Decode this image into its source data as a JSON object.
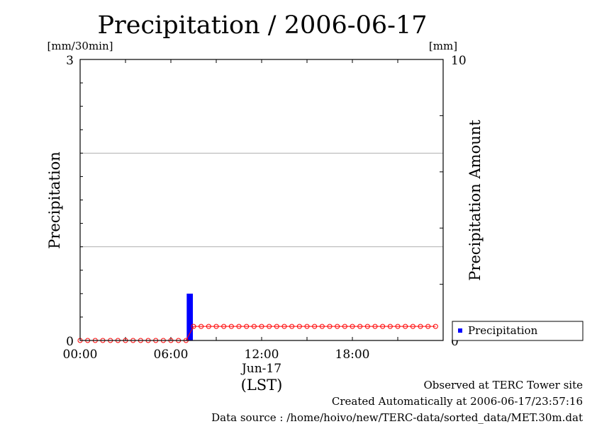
{
  "chart_data": {
    "type": "bar",
    "title": "Precipitation / 2006-06-17",
    "ylabel": "Precipitation",
    "ylabel_right": "Precipitation Amount",
    "yunit_left": "[mm/30min]",
    "yunit_right": "[mm]",
    "ylim": [
      0,
      3
    ],
    "ylim_right": [
      0,
      10
    ],
    "yticks_left": [
      "0",
      "3"
    ],
    "yticks_right": [
      "0",
      "10"
    ],
    "xticks": [
      "00:00",
      "06:00",
      "12:00",
      "18:00"
    ],
    "xlabel_date": "Jun-17",
    "xlabel": "(LST)",
    "x_hours": [
      0,
      24
    ],
    "grid": true,
    "legend": {
      "entries": [
        "Precipitation"
      ],
      "placement": "bottom-right, outside plot"
    },
    "colors": {
      "bar": "#0000ff",
      "cumulative": "#ff0000",
      "grid": "#b0b0b0"
    },
    "series": [
      {
        "name": "Precipitation",
        "kind": "bar",
        "axis": "left",
        "points": [
          {
            "hour": 7.0,
            "value": 0.5
          }
        ]
      },
      {
        "kind": "line-markers",
        "axis": "right",
        "hours": [
          0,
          0.5,
          1,
          1.5,
          2,
          2.5,
          3,
          3.5,
          4,
          4.5,
          5,
          5.5,
          6,
          6.5,
          7,
          7.5,
          8,
          8.5,
          9,
          9.5,
          10,
          10.5,
          11,
          11.5,
          12,
          12.5,
          13,
          13.5,
          14,
          14.5,
          15,
          15.5,
          16,
          16.5,
          17,
          17.5,
          18,
          18.5,
          19,
          19.5,
          20,
          20.5,
          21,
          21.5,
          22,
          22.5,
          23,
          23.5
        ],
        "values": [
          0,
          0,
          0,
          0,
          0,
          0,
          0,
          0,
          0,
          0,
          0,
          0,
          0,
          0,
          0,
          0.5,
          0.5,
          0.5,
          0.5,
          0.5,
          0.5,
          0.5,
          0.5,
          0.5,
          0.5,
          0.5,
          0.5,
          0.5,
          0.5,
          0.5,
          0.5,
          0.5,
          0.5,
          0.5,
          0.5,
          0.5,
          0.5,
          0.5,
          0.5,
          0.5,
          0.5,
          0.5,
          0.5,
          0.5,
          0.5,
          0.5,
          0.5,
          0.5
        ]
      }
    ]
  },
  "footer": {
    "observed": "Observed at TERC Tower site",
    "created": "Created Automatically at 2006-06-17/23:57:16",
    "source": "Data source : /home/hoivo/new/TERC-data/sorted_data/MET.30m.dat"
  }
}
